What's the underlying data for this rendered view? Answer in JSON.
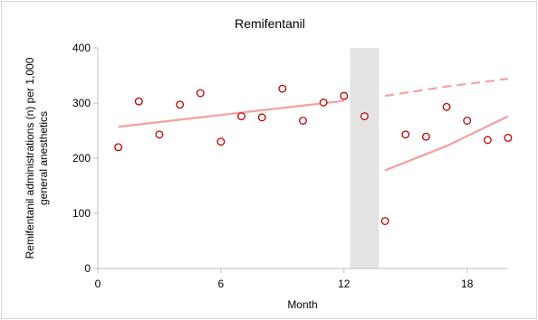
{
  "chart_data": {
    "type": "scatter",
    "title": "Remifentanil",
    "xlabel": "Month",
    "ylabel_lines": [
      "Remifentanil administrations (n) per 1,000",
      "general anesthetics"
    ],
    "xlim": [
      0,
      20
    ],
    "ylim": [
      0,
      400
    ],
    "xticks": [
      0,
      6,
      12,
      18
    ],
    "yticks": [
      0,
      100,
      200,
      300,
      400
    ],
    "xtick_labels": [
      "0",
      "6",
      "12",
      "18"
    ],
    "ytick_labels": [
      "0",
      "100",
      "200",
      "300",
      "400"
    ],
    "grid": false,
    "legend": "none",
    "shaded_interval": {
      "x_start": 12.3,
      "x_end": 13.7,
      "color": "#e3e3e3"
    },
    "points": {
      "color": "#c00000",
      "x": [
        1,
        2,
        3,
        4,
        5,
        6,
        7,
        8,
        9,
        10,
        11,
        12,
        13,
        14,
        15,
        16,
        17,
        18,
        19,
        20
      ],
      "y": [
        220,
        303,
        243,
        297,
        318,
        230,
        276,
        274,
        326,
        268,
        301,
        313,
        276,
        86,
        243,
        239,
        293,
        268,
        233,
        237
      ]
    },
    "lines": [
      {
        "style": "solid",
        "color": "#f4a0a0",
        "x": [
          1,
          12
        ],
        "y": [
          257,
          304
        ]
      },
      {
        "style": "solid",
        "color": "#f4a0a0",
        "x": [
          14,
          17,
          20
        ],
        "y": [
          178,
          222,
          276
        ]
      },
      {
        "style": "dashed",
        "color": "#f4a0a0",
        "x": [
          14,
          17,
          20
        ],
        "y": [
          313,
          330,
          344
        ]
      }
    ]
  }
}
